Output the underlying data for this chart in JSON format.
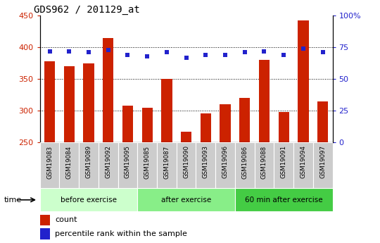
{
  "title": "GDS962 / 201129_at",
  "samples": [
    "GSM19083",
    "GSM19084",
    "GSM19089",
    "GSM19092",
    "GSM19095",
    "GSM19085",
    "GSM19087",
    "GSM19090",
    "GSM19093",
    "GSM19096",
    "GSM19086",
    "GSM19088",
    "GSM19091",
    "GSM19094",
    "GSM19097"
  ],
  "counts": [
    378,
    370,
    375,
    415,
    308,
    304,
    350,
    267,
    296,
    310,
    320,
    380,
    298,
    443,
    315
  ],
  "percentile_ranks": [
    72,
    72,
    71,
    73,
    69,
    68,
    71,
    67,
    69,
    69,
    71,
    72,
    69,
    74,
    71
  ],
  "ylim_left": [
    250,
    450
  ],
  "ylim_right": [
    0,
    100
  ],
  "yticks_left": [
    250,
    300,
    350,
    400,
    450
  ],
  "yticks_right": [
    0,
    25,
    50,
    75,
    100
  ],
  "bar_color": "#cc2200",
  "dot_color": "#2222cc",
  "groups": [
    {
      "label": "before exercise",
      "start": 0,
      "end": 4,
      "color": "#ccffcc"
    },
    {
      "label": "after exercise",
      "start": 5,
      "end": 9,
      "color": "#88ee88"
    },
    {
      "label": "60 min after exercise",
      "start": 10,
      "end": 14,
      "color": "#44cc44"
    }
  ],
  "legend_count": "count",
  "legend_percentile": "percentile rank within the sample",
  "bar_width": 0.55,
  "grid_yticks": [
    300,
    350,
    400
  ],
  "sample_bg": "#cccccc"
}
